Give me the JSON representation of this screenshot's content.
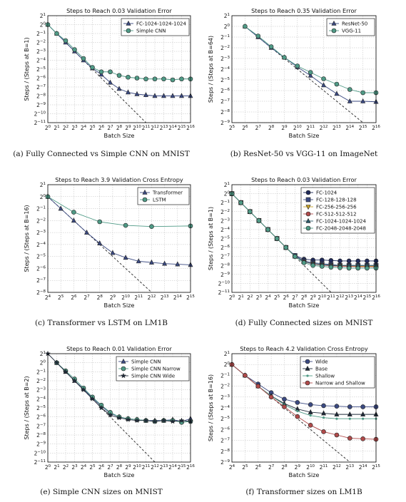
{
  "captions": [
    "(a) Fully Connected vs Simple CNN on MNIST",
    "(b) ResNet-50 vs VGG-11 on ImageNet",
    "(c) Transformer vs LSTM on LM1B",
    "(d) Fully Connected sizes on MNIST",
    "(e) Simple CNN sizes on MNIST",
    "(f) Transformer sizes on LM1B"
  ],
  "chart_data": [
    {
      "type": "line",
      "title": "Steps to Reach 0.03 Validation Error",
      "xlabel": "Batch Size",
      "ylabel": "Steps / (Steps at B=1)",
      "x_scale": "log2",
      "y_scale": "log2",
      "xlim_exp": [
        0,
        16
      ],
      "ylim_exp": [
        -11,
        1
      ],
      "grid": true,
      "legend_position": "top-right",
      "perfect_scaling_line": true,
      "series": [
        {
          "name": "FC-1024-1024-1024",
          "marker": "triangle",
          "color": "#3b4a82",
          "x_exp": [
            0,
            1,
            2,
            3,
            4,
            5,
            6,
            7,
            8,
            9,
            10,
            11,
            12,
            13,
            14,
            15,
            16
          ],
          "y_exp": [
            0,
            -1,
            -2,
            -3,
            -4,
            -4.9,
            -5.6,
            -6.5,
            -7.2,
            -7.6,
            -7.8,
            -7.9,
            -8.0,
            -8.0,
            -8.0,
            -8.0,
            -8.0
          ]
        },
        {
          "name": "Simple CNN",
          "marker": "circle",
          "color": "#4f9a86",
          "x_exp": [
            0,
            1,
            2,
            3,
            4,
            5,
            6,
            7,
            8,
            9,
            10,
            11,
            12,
            13,
            14,
            15,
            16
          ],
          "y_exp": [
            0,
            -1,
            -1.8,
            -2.8,
            -3.8,
            -4.8,
            -5.3,
            -5.3,
            -5.7,
            -5.9,
            -6.0,
            -6.1,
            -6.1,
            -6.1,
            -6.2,
            -6.1,
            -6.1
          ]
        }
      ]
    },
    {
      "type": "line",
      "title": "Steps to Reach 0.35 Validation Error",
      "xlabel": "Batch Size",
      "ylabel": "Steps / (Steps at B=64)",
      "x_scale": "log2",
      "y_scale": "log2",
      "xlim_exp": [
        5,
        16
      ],
      "ylim_exp": [
        -9,
        1
      ],
      "grid": true,
      "legend_position": "top-right",
      "perfect_scaling_line": true,
      "series": [
        {
          "name": "ResNet-50",
          "marker": "triangle",
          "color": "#3b4a82",
          "x_exp": [
            6,
            7,
            8,
            9,
            10,
            11,
            12,
            13,
            14,
            15,
            16
          ],
          "y_exp": [
            0,
            -1,
            -2,
            -2.9,
            -3.8,
            -4.6,
            -5.5,
            -6.3,
            -7.0,
            -7.0,
            -7.05
          ]
        },
        {
          "name": "VGG-11",
          "marker": "circle",
          "color": "#4f9a86",
          "x_exp": [
            6,
            7,
            8,
            9,
            10,
            11,
            12,
            13,
            14,
            15,
            16
          ],
          "y_exp": [
            0,
            -0.9,
            -1.9,
            -2.9,
            -3.7,
            -4.3,
            -4.9,
            -5.4,
            -5.9,
            -6.2,
            -6.2
          ]
        }
      ]
    },
    {
      "type": "line",
      "title": "Steps to Reach 3.9 Validation Cross Entropy",
      "xlabel": "Batch Size",
      "ylabel": "Steps / (Steps at B=16)",
      "x_scale": "log2",
      "y_scale": "log2",
      "xlim_exp": [
        4,
        15
      ],
      "ylim_exp": [
        -8,
        1
      ],
      "grid": true,
      "legend_position": "top-right",
      "perfect_scaling_line": true,
      "series": [
        {
          "name": "Transformer",
          "marker": "triangle",
          "color": "#3b4a82",
          "x_exp": [
            4,
            5,
            6,
            7,
            8,
            9,
            10,
            11,
            12,
            13,
            14,
            15
          ],
          "y_exp": [
            0,
            -1,
            -2,
            -3,
            -3.9,
            -4.7,
            -5.1,
            -5.4,
            -5.5,
            -5.6,
            -5.65,
            -5.7
          ]
        },
        {
          "name": "LSTM",
          "marker": "circle",
          "color": "#4f9a86",
          "x_exp": [
            4,
            6,
            8,
            10,
            12,
            15
          ],
          "y_exp": [
            0,
            -1.3,
            -2.1,
            -2.4,
            -2.5,
            -2.45
          ]
        }
      ]
    },
    {
      "type": "line",
      "title": "Steps to Reach 0.03 Validation Error",
      "xlabel": "Batch Size",
      "ylabel": "Steps / (Steps at B=1)",
      "x_scale": "log2",
      "y_scale": "log2",
      "xlim_exp": [
        0,
        16
      ],
      "ylim_exp": [
        -11,
        1
      ],
      "grid": true,
      "legend_position": "top-right",
      "perfect_scaling_line": true,
      "series": [
        {
          "name": "FC-1024",
          "marker": "circle",
          "color": "#1f2a5a",
          "x_exp": [
            0,
            1,
            2,
            3,
            4,
            5,
            6,
            7,
            8,
            9,
            10,
            11,
            12,
            13,
            14,
            15,
            16
          ],
          "y_exp": [
            0,
            -1,
            -2,
            -3,
            -4,
            -5,
            -6,
            -6.9,
            -7.3,
            -7.4,
            -7.4,
            -7.45,
            -7.5,
            -7.5,
            -7.5,
            -7.5,
            -7.5
          ]
        },
        {
          "name": "FC-128-128-128",
          "marker": "square",
          "color": "#3b4a82",
          "x_exp": [
            0,
            1,
            2,
            3,
            4,
            5,
            6,
            7,
            8,
            9,
            10,
            11,
            12,
            13,
            14,
            15,
            16
          ],
          "y_exp": [
            0,
            -1,
            -2,
            -3,
            -4,
            -5,
            -6,
            -6.9,
            -7.5,
            -7.7,
            -7.8,
            -7.9,
            -8.0,
            -8.0,
            -8.0,
            -8.0,
            -8.0
          ]
        },
        {
          "name": "FC-256-256-256",
          "marker": "triangle-down",
          "color": "#c9a227",
          "x_exp": [
            0,
            1,
            2,
            3,
            4,
            5,
            6,
            7,
            8,
            9,
            10,
            11,
            12,
            13,
            14,
            15,
            16
          ],
          "y_exp": [
            0,
            -1,
            -2,
            -3,
            -4,
            -5,
            -6,
            -7,
            -7.6,
            -7.8,
            -7.9,
            -8.0,
            -8.05,
            -8.1,
            -8.1,
            -8.1,
            -8.1
          ]
        },
        {
          "name": "FC-512-512-512",
          "marker": "circle",
          "color": "#b04a4a",
          "x_exp": [
            0,
            1,
            2,
            3,
            4,
            5,
            6,
            7,
            8,
            9,
            10,
            11,
            12,
            13,
            14,
            15,
            16
          ],
          "y_exp": [
            0,
            -1,
            -2,
            -3,
            -4,
            -5,
            -6,
            -7,
            -7.6,
            -7.85,
            -7.95,
            -8.05,
            -8.1,
            -8.1,
            -8.15,
            -8.15,
            -8.15
          ]
        },
        {
          "name": "FC-1024-1024-1024",
          "marker": "triangle",
          "color": "#2a5a6a",
          "x_exp": [
            0,
            1,
            2,
            3,
            4,
            5,
            6,
            7,
            8,
            9,
            10,
            11,
            12,
            13,
            14,
            15,
            16
          ],
          "y_exp": [
            0,
            -1,
            -2,
            -3,
            -4,
            -5,
            -6,
            -7,
            -7.6,
            -7.8,
            -7.9,
            -8.0,
            -8.0,
            -8.0,
            -8.0,
            -8.0,
            -8.0
          ]
        },
        {
          "name": "FC-2048-2048-2048",
          "marker": "circle",
          "color": "#4f9a86",
          "x_exp": [
            0,
            1,
            2,
            3,
            4,
            5,
            6,
            7,
            8,
            9,
            10,
            11,
            12,
            13,
            14,
            15,
            16
          ],
          "y_exp": [
            0,
            -1,
            -2,
            -3,
            -4,
            -5,
            -6,
            -7,
            -7.7,
            -8.0,
            -8.1,
            -8.2,
            -8.25,
            -8.3,
            -8.3,
            -8.3,
            -8.3
          ]
        }
      ]
    },
    {
      "type": "line",
      "title": "Steps to Reach 0.01 Validation Error",
      "xlabel": "Batch Size",
      "ylabel": "Steps / (Steps at B=2)",
      "x_scale": "log2",
      "y_scale": "log2",
      "xlim_exp": [
        0,
        16
      ],
      "ylim_exp": [
        -11,
        1
      ],
      "grid": true,
      "legend_position": "top-right",
      "perfect_scaling_line": true,
      "series": [
        {
          "name": "Simple CNN",
          "marker": "triangle",
          "color": "#3b4a82",
          "x_exp": [
            1,
            2,
            3,
            4,
            5,
            6,
            7,
            8,
            9,
            10,
            11,
            12,
            13,
            14,
            15,
            16
          ],
          "y_exp": [
            0,
            -1,
            -2,
            -2.9,
            -3.9,
            -4.8,
            -5.6,
            -6.0,
            -6.2,
            -6.3,
            -6.4,
            -6.4,
            -6.4,
            -6.3,
            -6.5,
            -6.2
          ]
        },
        {
          "name": "Simple CNN Narrow",
          "marker": "circle",
          "color": "#4f9a86",
          "x_exp": [
            1,
            2,
            3,
            4,
            5,
            6,
            7,
            8,
            9,
            10,
            11,
            12,
            13,
            14,
            15,
            16
          ],
          "y_exp": [
            0,
            -0.9,
            -1.8,
            -2.8,
            -3.8,
            -4.7,
            -5.5,
            -6.0,
            -6.2,
            -6.3,
            -6.4,
            -6.5,
            -6.4,
            -6.4,
            -6.6,
            -6.5
          ]
        },
        {
          "name": "Simple CNN Wide",
          "marker": "star",
          "color": "#1f2a3a",
          "x_exp": [
            0,
            1,
            2,
            3,
            4,
            5,
            6,
            7,
            8,
            9,
            10,
            11,
            12,
            13,
            14,
            15,
            16
          ],
          "y_exp": [
            1,
            0,
            -1,
            -2,
            -3,
            -4,
            -5,
            -5.8,
            -6.1,
            -6.3,
            -6.4,
            -6.4,
            -6.5,
            -6.4,
            -6.5,
            -6.4,
            -6.5
          ]
        }
      ]
    },
    {
      "type": "line",
      "title": "Steps to Reach 4.2 Validation Cross Entropy",
      "xlabel": "Batch Size",
      "ylabel": "Steps / (Steps at B=16)",
      "x_scale": "log2",
      "y_scale": "log2",
      "xlim_exp": [
        4,
        15
      ],
      "ylim_exp": [
        -9,
        1
      ],
      "grid": true,
      "legend_position": "top-right",
      "perfect_scaling_line": true,
      "series": [
        {
          "name": "Wide",
          "marker": "circle",
          "color": "#3b4a82",
          "x_exp": [
            4,
            5,
            6,
            7,
            8,
            9,
            10,
            11,
            12,
            13,
            14,
            15
          ],
          "y_exp": [
            0,
            -1,
            -1.8,
            -2.6,
            -3.2,
            -3.5,
            -3.7,
            -3.8,
            -3.85,
            -3.9,
            -3.9,
            -3.9
          ]
        },
        {
          "name": "Base",
          "marker": "triangle",
          "color": "#1f2a3a",
          "x_exp": [
            4,
            5,
            6,
            7,
            8,
            9,
            10,
            11,
            12,
            13,
            14,
            15
          ],
          "y_exp": [
            0,
            -1,
            -2,
            -2.9,
            -3.6,
            -4.1,
            -4.4,
            -4.5,
            -4.6,
            -4.6,
            -4.6,
            -4.6
          ]
        },
        {
          "name": "Shallow",
          "marker": "dot",
          "color": "#4f9a86",
          "x_exp": [
            4,
            5,
            6,
            7,
            8,
            9,
            10,
            11,
            12,
            13,
            14,
            15
          ],
          "y_exp": [
            0,
            -1,
            -2,
            -2.9,
            -3.7,
            -4.3,
            -4.7,
            -4.9,
            -5.0,
            -5.0,
            -5.0,
            -5.0
          ]
        },
        {
          "name": "Narrow and Shallow",
          "marker": "circle",
          "color": "#b04a4a",
          "x_exp": [
            4,
            5,
            6,
            7,
            8,
            9,
            10,
            11,
            12,
            13,
            14,
            15
          ],
          "y_exp": [
            0,
            -1,
            -2,
            -3,
            -3.9,
            -4.8,
            -5.6,
            -6.2,
            -6.5,
            -6.8,
            -6.85,
            -6.9
          ]
        }
      ]
    }
  ]
}
